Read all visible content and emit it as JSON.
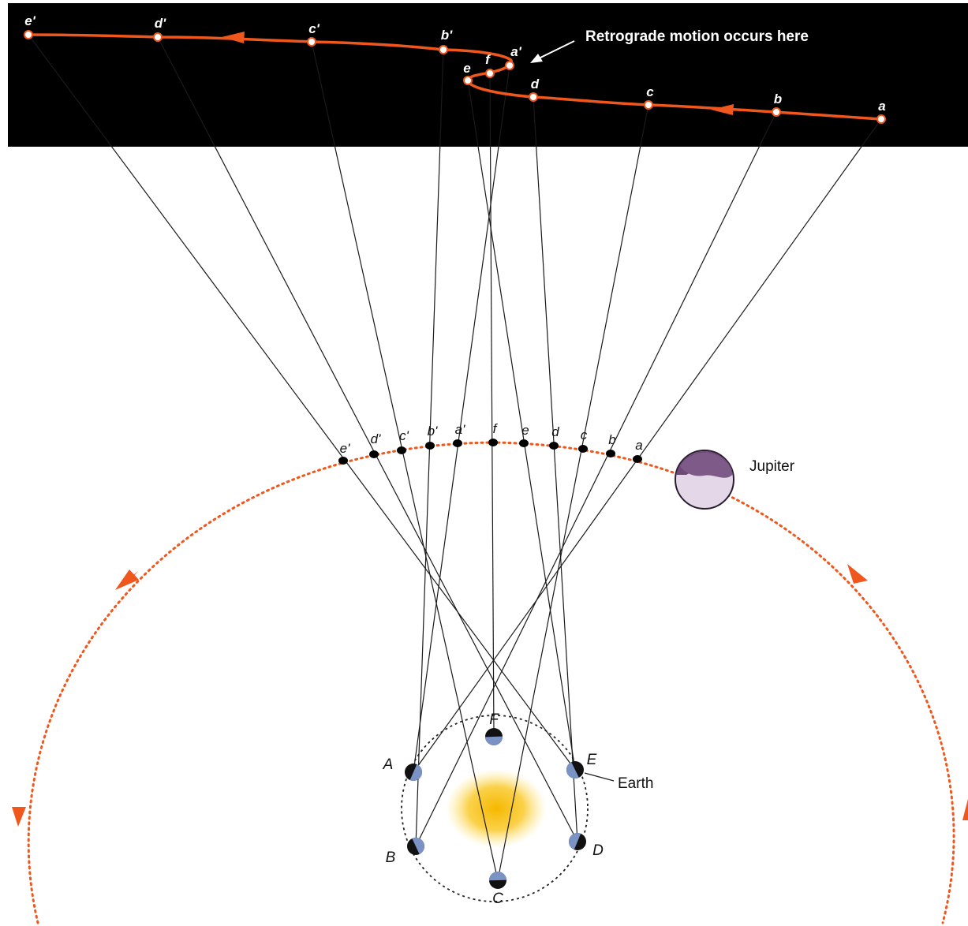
{
  "diagram": {
    "annotation": "Retrograde motion occurs here",
    "jupiter_label": "Jupiter",
    "earth_label": "Earth",
    "sky_points": [
      {
        "id": "a",
        "label": "a"
      },
      {
        "id": "b",
        "label": "b"
      },
      {
        "id": "c",
        "label": "c"
      },
      {
        "id": "d",
        "label": "d"
      },
      {
        "id": "e",
        "label": "e"
      },
      {
        "id": "f",
        "label": "f"
      },
      {
        "id": "a2",
        "label": "a'"
      },
      {
        "id": "b2",
        "label": "b'"
      },
      {
        "id": "c2",
        "label": "c'"
      },
      {
        "id": "d2",
        "label": "d'"
      },
      {
        "id": "e2",
        "label": "e'"
      }
    ],
    "jupiter_points": [
      {
        "id": "a",
        "label": "a"
      },
      {
        "id": "b",
        "label": "b"
      },
      {
        "id": "c",
        "label": "c"
      },
      {
        "id": "d",
        "label": "d"
      },
      {
        "id": "e",
        "label": "e"
      },
      {
        "id": "f",
        "label": "f"
      },
      {
        "id": "a2",
        "label": "a'"
      },
      {
        "id": "b2",
        "label": "b'"
      },
      {
        "id": "c2",
        "label": "c'"
      },
      {
        "id": "d2",
        "label": "d'"
      },
      {
        "id": "e2",
        "label": "e'"
      }
    ],
    "earth_points": [
      {
        "id": "A",
        "label": "A"
      },
      {
        "id": "B",
        "label": "B"
      },
      {
        "id": "C",
        "label": "C"
      },
      {
        "id": "D",
        "label": "D"
      },
      {
        "id": "E",
        "label": "E"
      },
      {
        "id": "F",
        "label": "F"
      }
    ],
    "sight_lines": [
      {
        "earth": "A",
        "jupiter": "a",
        "sky": "a"
      },
      {
        "earth": "B",
        "jupiter": "b",
        "sky": "b"
      },
      {
        "earth": "C",
        "jupiter": "c",
        "sky": "c"
      },
      {
        "earth": "D",
        "jupiter": "d",
        "sky": "d"
      },
      {
        "earth": "E",
        "jupiter": "e",
        "sky": "e"
      },
      {
        "earth": "F",
        "jupiter": "f",
        "sky": "f"
      },
      {
        "earth": "A",
        "jupiter": "a2",
        "sky": "a2"
      },
      {
        "earth": "B",
        "jupiter": "b2",
        "sky": "b2"
      },
      {
        "earth": "C",
        "jupiter": "c2",
        "sky": "c2"
      },
      {
        "earth": "D",
        "jupiter": "d2",
        "sky": "d2"
      },
      {
        "earth": "E",
        "jupiter": "e2",
        "sky": "e2"
      }
    ],
    "colors": {
      "sky": "#000000",
      "path": "#f0571c",
      "orbit": "#f0571c",
      "sight_line": "#1a1a1a",
      "sun": "#f6b800",
      "jupiter": "#6e4a78",
      "earth_dark": "#111111",
      "earth_lit": "#7a93c4"
    }
  }
}
